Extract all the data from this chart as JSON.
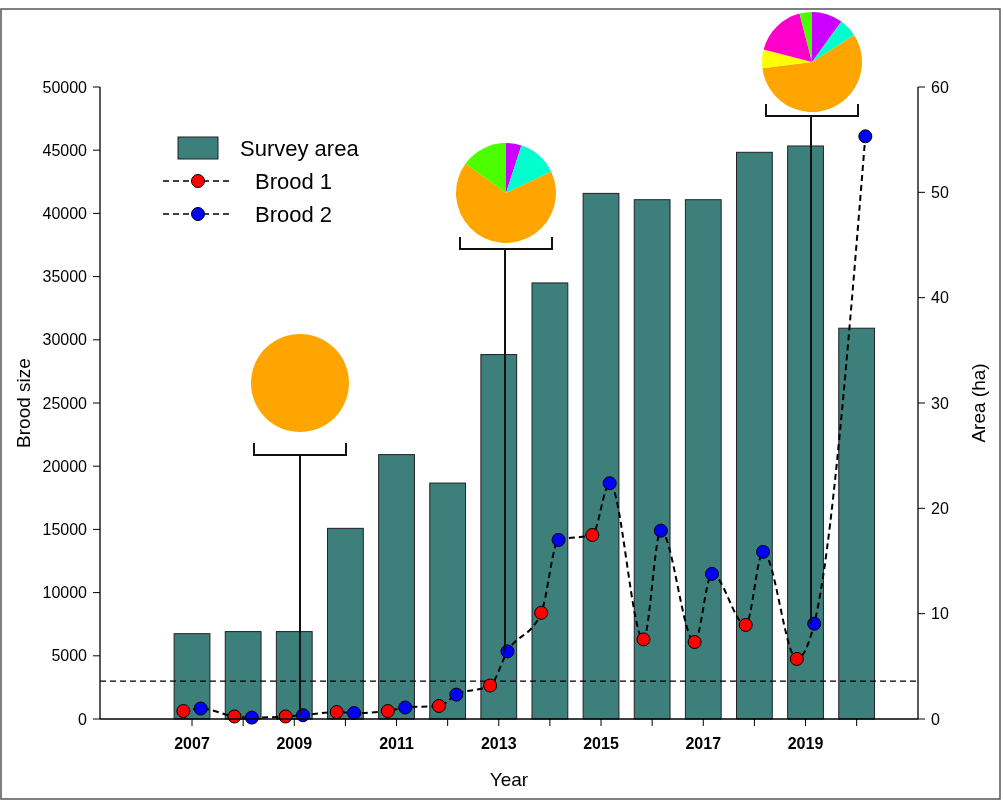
{
  "chart_data": [
    {
      "type": "bar",
      "xlabel": "Year",
      "ylabel": "Brood size",
      "y2label": "Area (ha)",
      "legend": "top left",
      "marker": "circle",
      "xlim": [
        2005.2,
        2021.2
      ],
      "xticks": [
        2007,
        {
          "value": 2008,
          "label": null
        },
        2009,
        {
          "value": 2010,
          "label": null
        },
        2011,
        {
          "value": 2012,
          "label": null
        },
        2013,
        {
          "value": 2014,
          "label": null
        },
        2015,
        {
          "value": 2016,
          "label": null
        },
        2017,
        {
          "value": 2018,
          "label": null
        },
        2019,
        {
          "value": 2020,
          "label": null
        }
      ],
      "ylim": [
        0,
        50000
      ],
      "yticks": [
        0,
        5000,
        10000,
        15000,
        20000,
        25000,
        30000,
        35000,
        40000,
        45000,
        50000
      ],
      "y2lim": [
        0,
        60
      ],
      "y2ticks": [
        0,
        10,
        20,
        30,
        40,
        50,
        60
      ],
      "ref_lines": [
        {
          "axis": "y",
          "value": 3000,
          "color": "#000000",
          "line_style": "dashed"
        }
      ],
      "series": [
        {
          "name": "Survey area",
          "type": "bar",
          "axis": "y2",
          "color": "#3d7f7b",
          "x": [
            2007,
            2008,
            2009,
            2010,
            2011,
            2012,
            2013,
            2014,
            2015,
            2016,
            2017,
            2018,
            2019,
            2020
          ],
          "values": [
            8.1,
            8.3,
            8.3,
            18.1,
            25.1,
            22.4,
            34.6,
            41.4,
            49.9,
            49.3,
            49.3,
            53.8,
            54.4,
            37.1
          ]
        },
        {
          "type": "line",
          "color": "#000000",
          "line_style": "dashed",
          "marker": "none",
          "x": [
            2006.83,
            2007.17,
            2007.83,
            2008.17,
            2008.83,
            2009.17,
            2009.83,
            2010.17,
            2010.83,
            2011.17,
            2011.83,
            2012.17,
            2012.83,
            2013.17,
            2013.83,
            2014.17,
            2014.83,
            2015.17,
            2015.83,
            2016.17,
            2016.83,
            2017.17,
            2017.83,
            2018.17,
            2018.83,
            2019.17,
            2020.17
          ],
          "values": [
            630,
            830,
            200,
            110,
            200,
            300,
            550,
            470,
            630,
            910,
            1030,
            1930,
            2650,
            5350,
            8400,
            14170,
            14560,
            18650,
            6300,
            14900,
            6090,
            11480,
            7440,
            13220,
            4750,
            7540,
            46100
          ]
        },
        {
          "name": "Brood 1",
          "type": "scatter",
          "color": "#ff0000",
          "line_style": "dashed",
          "x": [
            2006.83,
            2007.83,
            2008.83,
            2009.83,
            2010.83,
            2011.83,
            2012.83,
            2013.83,
            2014.83,
            2015.83,
            2016.83,
            2017.83,
            2018.83
          ],
          "values": [
            630,
            200,
            200,
            550,
            630,
            1030,
            2650,
            8400,
            14560,
            6300,
            6090,
            7440,
            4750
          ]
        },
        {
          "name": "Brood 2",
          "type": "scatter",
          "color": "#0000ff",
          "line_style": "dashed",
          "x": [
            2007.17,
            2008.17,
            2009.17,
            2010.17,
            2011.17,
            2012.17,
            2013.17,
            2014.17,
            2015.17,
            2016.17,
            2017.17,
            2018.17,
            2019.17,
            2020.17
          ],
          "values": [
            830,
            110,
            300,
            470,
            910,
            1930,
            5350,
            14170,
            18650,
            14900,
            11480,
            13220,
            7540,
            46100
          ]
        }
      ]
    },
    {
      "type": "pie",
      "categories": [
        null
      ],
      "values": [
        100
      ],
      "colors": [
        "#ffa500"
      ]
    },
    {
      "type": "pie",
      "categories": [
        null,
        null,
        null,
        null
      ],
      "values": [
        5,
        13,
        67,
        15
      ],
      "colors": [
        "#cc00ff",
        "#00ffcc",
        "#ffa500",
        "#4cff00"
      ]
    },
    {
      "type": "pie",
      "categories": [
        null,
        null,
        null,
        null,
        null,
        null
      ],
      "values": [
        10,
        6,
        57,
        6,
        17,
        4
      ],
      "colors": [
        "#cc00ff",
        "#00ffcc",
        "#ffa500",
        "#ffff00",
        "#ff00cc",
        "#4cff00"
      ]
    }
  ]
}
